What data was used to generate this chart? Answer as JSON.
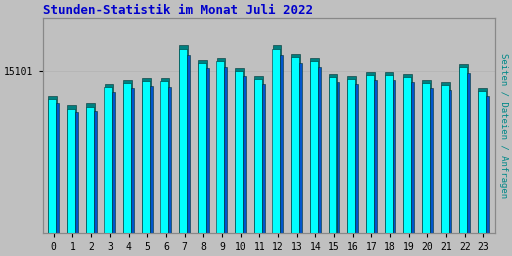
{
  "title": "Stunden-Statistik im Monat Juli 2022",
  "title_color": "#0000cc",
  "ylabel_text": "15101",
  "ylabel2": "Seiten / Dateien / Anfragen",
  "ylabel2_color": "#008888",
  "hours": [
    0,
    1,
    2,
    3,
    4,
    5,
    6,
    7,
    8,
    9,
    10,
    11,
    12,
    13,
    14,
    15,
    16,
    17,
    18,
    19,
    20,
    21,
    22,
    23
  ],
  "bg_color": "#c0c0c0",
  "plot_bg_color": "#c0c0c0",
  "bar_color_cyan": "#00ffff",
  "bar_color_blue": "#0055cc",
  "bar_color_teal": "#008080",
  "bar_edge_color": "#003333",
  "ylim_min": 14700,
  "ylim_max": 15230,
  "values_cyan": [
    15030,
    15005,
    15010,
    15060,
    15070,
    15075,
    15075,
    15155,
    15120,
    15125,
    15100,
    15080,
    15155,
    15135,
    15125,
    15085,
    15080,
    15090,
    15090,
    15085,
    15070,
    15065,
    15110,
    15050
  ],
  "values_blue": [
    15020,
    14998,
    15000,
    15048,
    15058,
    15063,
    15060,
    15140,
    15108,
    15110,
    15088,
    15068,
    15140,
    15120,
    15110,
    15072,
    15068,
    15078,
    15078,
    15072,
    15058,
    15053,
    15095,
    15038
  ],
  "values_teal": [
    15038,
    15015,
    15020,
    15068,
    15078,
    15083,
    15083,
    15165,
    15128,
    15133,
    15108,
    15088,
    15163,
    15143,
    15133,
    15093,
    15088,
    15098,
    15098,
    15093,
    15078,
    15073,
    15118,
    15058
  ],
  "font_family": "monospace"
}
